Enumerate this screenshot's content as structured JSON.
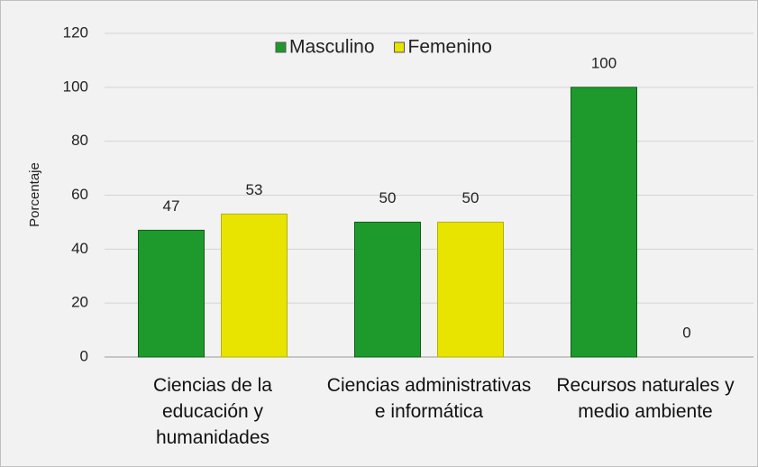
{
  "chart_data": {
    "type": "bar",
    "y_label": "Porcentaje",
    "categories": [
      "Ciencias de la educación y humanidades",
      "Ciencias administrativas e informática",
      "Recursos naturales y medio ambiente"
    ],
    "series": [
      {
        "name": "Masculino",
        "color": "#1e9a2c",
        "values": [
          47,
          50,
          100
        ]
      },
      {
        "name": "Femenino",
        "color": "#e8e400",
        "values": [
          53,
          50,
          0
        ]
      }
    ],
    "ylim": [
      0,
      120
    ],
    "yticks": [
      0,
      20,
      40,
      60,
      80,
      100,
      120
    ],
    "grid": true,
    "legend": "top"
  }
}
